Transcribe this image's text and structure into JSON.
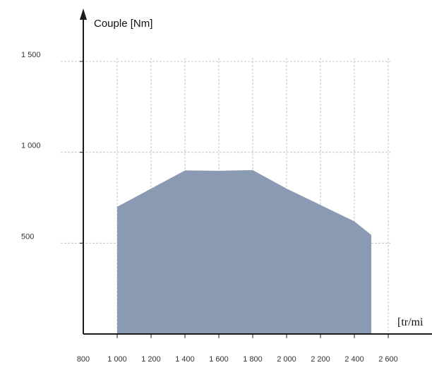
{
  "chart_data": {
    "type": "area",
    "ylabel": "Couple [Nm]",
    "xlabel": "[tr/mi",
    "x": [
      1000,
      1200,
      1400,
      1600,
      1800,
      2000,
      2200,
      2400,
      2500
    ],
    "series": [
      {
        "values": [
          700,
          800,
          900,
          898,
          902,
          800,
          710,
          620,
          545
        ]
      }
    ],
    "xlim": [
      800,
      2600
    ],
    "ylim": [
      0,
      1500
    ],
    "x_ticks": [
      800,
      1000,
      1200,
      1400,
      1600,
      1800,
      2000,
      2200,
      2400,
      2600
    ],
    "x_tick_labels": [
      "800",
      "1 000",
      "1 200",
      "1 400",
      "1 600",
      "1 800",
      "2 000",
      "2 200",
      "2 400",
      "2 600"
    ],
    "y_ticks": [
      500,
      1000,
      1500
    ],
    "y_tick_labels": [
      "500",
      "1 000",
      "1 500"
    ],
    "grid": true,
    "colors": {
      "fill": "#8a9ab3",
      "axis": "#1a1a1a",
      "grid": "#b8b8b8"
    }
  }
}
